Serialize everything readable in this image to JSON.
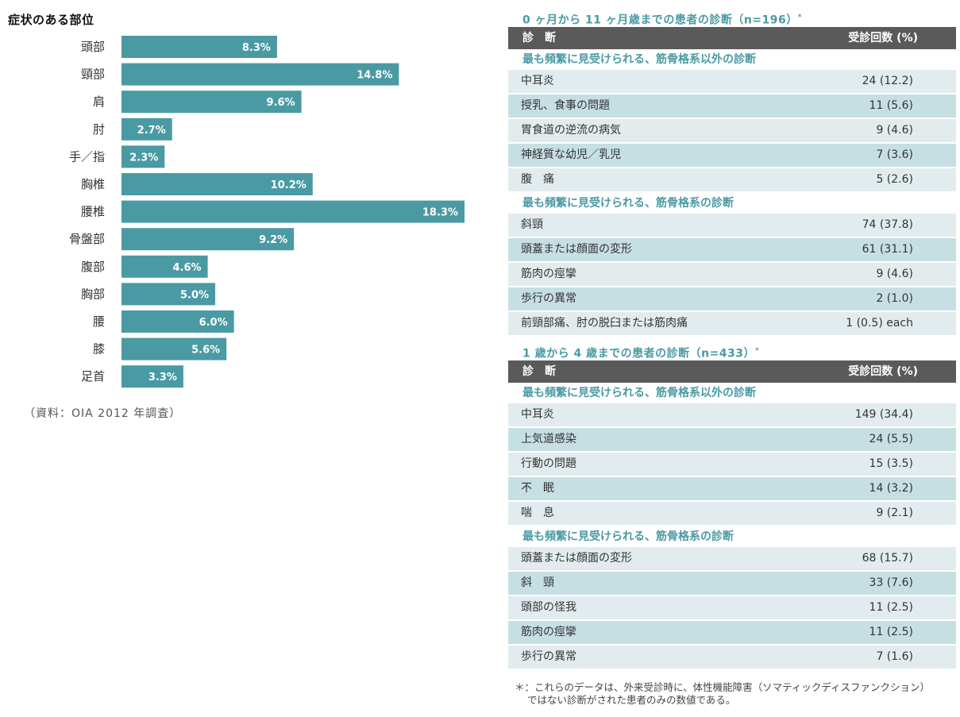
{
  "chart_data": {
    "type": "bar",
    "orientation": "horizontal",
    "title": "症状のある部位",
    "categories": [
      "頭部",
      "頸部",
      "肩",
      "肘",
      "手／指",
      "胸椎",
      "腰椎",
      "骨盤部",
      "腹部",
      "胸部",
      "腰",
      "膝",
      "足首"
    ],
    "values": [
      8.3,
      14.8,
      9.6,
      2.7,
      2.3,
      10.2,
      18.3,
      9.2,
      4.6,
      5.0,
      6.0,
      5.6,
      3.3
    ],
    "value_labels": [
      "8.3%",
      "14.8%",
      "9.6%",
      "2.7%",
      "2.3%",
      "10.2%",
      "18.3%",
      "9.2%",
      "4.6%",
      "5.0%",
      "6.0%",
      "5.6%",
      "3.3%"
    ],
    "unit": "%",
    "bar_color": "#4a9aa3",
    "grid": false,
    "source": "（資料：OIA 2012 年調査）"
  },
  "table1": {
    "title": "0 ヶ月から 11 ヶ月歳までの患者の診断（n=196）",
    "marker": "*",
    "col_diag": "診　断",
    "col_count": "受診回数 (%)",
    "sections": [
      {
        "label": "最も頻繁に見受けられる、筋骨格系以外の診断",
        "rows": [
          {
            "name": "中耳炎",
            "value": "24 (12.2)"
          },
          {
            "name": "授乳、食事の問題",
            "value": "11 (5.6)"
          },
          {
            "name": "胃食道の逆流の病気",
            "value": "9 (4.6)"
          },
          {
            "name": "神経質な幼児／乳児",
            "value": "7 (3.6)"
          },
          {
            "name": "腹　痛",
            "value": "5 (2.6)"
          }
        ]
      },
      {
        "label": "最も頻繁に見受けられる、筋骨格系の診断",
        "rows": [
          {
            "name": "斜頸",
            "value": "74 (37.8)"
          },
          {
            "name": "頭蓋または顔面の変形",
            "value": "61 (31.1)"
          },
          {
            "name": "筋肉の痙攣",
            "value": "9 (4.6)"
          },
          {
            "name": "歩行の異常",
            "value": "2 (1.0)"
          },
          {
            "name": "前頸部痛、肘の脱臼または筋肉痛",
            "value": "1 (0.5) each"
          }
        ]
      }
    ]
  },
  "table2": {
    "title": "1 歳から 4 歳までの患者の診断（n=433）",
    "marker": "*",
    "col_diag": "診　断",
    "col_count": "受診回数 (%)",
    "sections": [
      {
        "label": "最も頻繁に見受けられる、筋骨格系以外の診断",
        "rows": [
          {
            "name": "中耳炎",
            "value": "149 (34.4)"
          },
          {
            "name": "上気道感染",
            "value": "24 (5.5)"
          },
          {
            "name": "行動の問題",
            "value": "15 (3.5)"
          },
          {
            "name": "不　眠",
            "value": "14 (3.2)"
          },
          {
            "name": "喘　息",
            "value": "9 (2.1)"
          }
        ]
      },
      {
        "label": "最も頻繁に見受けられる、筋骨格系の診断",
        "rows": [
          {
            "name": "頭蓋または顔面の変形",
            "value": "68 (15.7)"
          },
          {
            "name": "斜　頸",
            "value": "33 (7.6)"
          },
          {
            "name": "頭部の怪我",
            "value": "11 (2.5)"
          },
          {
            "name": "筋肉の痙攣",
            "value": "11 (2.5)"
          },
          {
            "name": "歩行の異常",
            "value": "7 (1.6)"
          }
        ]
      }
    ]
  },
  "footnote": {
    "line1": "＊：これらのデータは、外来受診時に、体性機能障害（ソマティックディスファンクション）",
    "line2": "ではない診断がされた患者のみの数値である。"
  }
}
